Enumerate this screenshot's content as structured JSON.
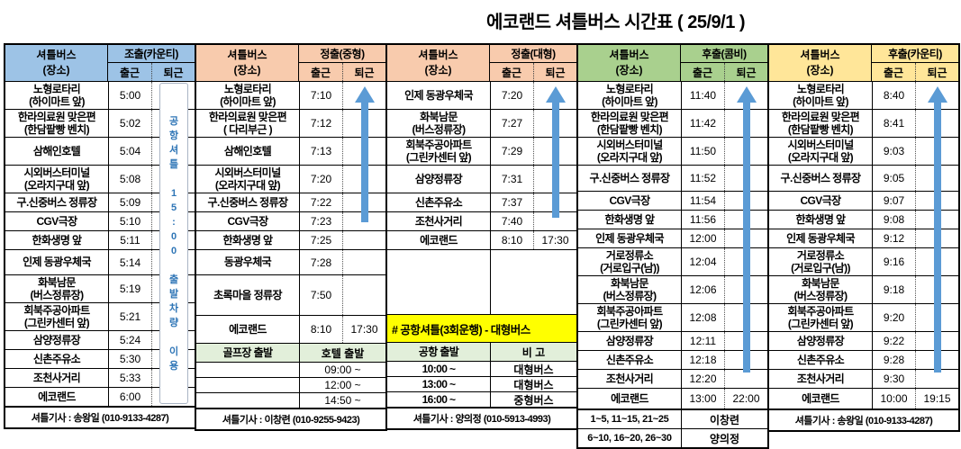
{
  "title": "에코랜드 셔틀버스 시간표 ( 25/9/1 )",
  "colors": {
    "group1_header": "#9DC3E6",
    "group2_header": "#F8CBAD",
    "group3_header": "#F8CBAD",
    "group4_header": "#A9D08E",
    "group5_header": "#FFE699",
    "subheader_bg": "#E2EFDA",
    "banner_bg": "#FFFF00",
    "arrow_blue": "#5B9BD5",
    "note_text_blue": "#2E75B6"
  },
  "groups": [
    {
      "id": "early-county",
      "color": "#9DC3E6",
      "place_header": "셔틀버스\n(장소)",
      "time_header": "조출(카운티)",
      "sub_in": "출근",
      "sub_out": "퇴근",
      "note": "공\n항\n셔\n틀\n \n1\n5\n:\n0\n0\n \n출\n발\n차\n량\n \n이\n용",
      "rows": [
        {
          "place": "노형로타리\n(하이마트 앞)",
          "in": "5:00",
          "out": ""
        },
        {
          "place": "한라의료원 맞은편\n(한담팥빵 벤치)",
          "in": "5:02",
          "out": ""
        },
        {
          "place": "삼해인호텔",
          "in": "5:04",
          "out": ""
        },
        {
          "place": "시외버스터미널\n(오라지구대 앞)",
          "in": "5:08",
          "out": ""
        },
        {
          "place": "구.신중버스 정류장",
          "in": "5:09",
          "out": ""
        },
        {
          "place": "CGV극장",
          "in": "5:10",
          "out": ""
        },
        {
          "place": "한화생명 앞",
          "in": "5:11",
          "out": ""
        },
        {
          "place": "인제 동광우체국",
          "in": "5:14",
          "out": ""
        },
        {
          "place": "화북남문\n(버스정류장)",
          "in": "5:19",
          "out": ""
        },
        {
          "place": "회북주공아파트\n(그린카센터 앞)",
          "in": "5:21",
          "out": ""
        },
        {
          "place": "삼양정류장",
          "in": "5:24",
          "out": ""
        },
        {
          "place": "신촌주유소",
          "in": "5:30",
          "out": ""
        },
        {
          "place": "조천사거리",
          "in": "5:33",
          "out": ""
        },
        {
          "place": "에코랜드",
          "in": "6:00",
          "out": ""
        }
      ],
      "footer": "셔틀기사 : 송왕일 (010-9133-4287)"
    },
    {
      "id": "mid-medium",
      "color": "#F8CBAD",
      "place_header": "셔틀버스\n(장소)",
      "time_header": "정출(중형)",
      "sub_in": "출근",
      "sub_out": "퇴근",
      "return_indicator": "up-arrow",
      "rows": [
        {
          "place": "노형로타리\n(하이마트 앞)",
          "in": "7:10",
          "out": ""
        },
        {
          "place": "한라의료원 맞은편\n( 다리부근 )",
          "in": "7:12",
          "out": ""
        },
        {
          "place": "삼해인호텔",
          "in": "7:13",
          "out": ""
        },
        {
          "place": "시외버스터미널\n(오라지구대 앞)",
          "in": "7:20",
          "out": ""
        },
        {
          "place": "구.신중버스 정류장",
          "in": "7:22",
          "out": ""
        },
        {
          "place": "CGV극장",
          "in": "7:23",
          "out": ""
        },
        {
          "place": "한화생명 앞",
          "in": "7:25",
          "out": ""
        },
        {
          "place": "동광우체국",
          "in": "7:28",
          "out": ""
        },
        {
          "place": "초록마을 정류장",
          "in": "7:50",
          "out": ""
        },
        {
          "place": "에코랜드",
          "in": "8:10",
          "out": "17:30"
        },
        {
          "place": "골프장 출발",
          "span": "호텔 출발",
          "style": "subheader"
        },
        {
          "place": "",
          "span": "09:00 ~"
        },
        {
          "place": "",
          "span": "12:00 ~"
        },
        {
          "place": "",
          "span": "14:50 ~"
        }
      ],
      "footer": "셔틀기사 : 이창련 (010-9255-9423)"
    },
    {
      "id": "mid-large",
      "color": "#F8CBAD",
      "place_header": "셔틀버스\n(장소)",
      "time_header": "정출(대형)",
      "sub_in": "출근",
      "sub_out": "퇴근",
      "return_indicator": "up-arrow",
      "rows": [
        {
          "place": "인제 동광우체국",
          "in": "7:20",
          "out": ""
        },
        {
          "place": "화북남문\n(버스정류장)",
          "in": "7:27",
          "out": ""
        },
        {
          "place": "회북주공아파트\n(그린카센터 앞)",
          "in": "7:29",
          "out": ""
        },
        {
          "place": "삼양정류장",
          "in": "7:31",
          "out": ""
        },
        {
          "place": "신촌주유소",
          "in": "7:37",
          "out": ""
        },
        {
          "place": "조천사거리",
          "in": "7:40",
          "out": ""
        },
        {
          "place": "에코랜드",
          "in": "8:10",
          "out": "17:30"
        },
        {
          "place": "",
          "span": "",
          "style": "spacer"
        },
        {
          "merged": "# 공항셔틀(3회운행) - 대형버스",
          "style": "banner"
        },
        {
          "place": "공항 출발",
          "span": "비   고",
          "style": "subheader"
        },
        {
          "place": "10:00 ~",
          "span": "대형버스",
          "style": "bus"
        },
        {
          "place": "13:00 ~",
          "span": "대형버스",
          "style": "bus"
        },
        {
          "place": "16:00 ~",
          "span": "중형버스",
          "style": "bus"
        }
      ],
      "footer": "셔틀기사 : 양의정 (010-5913-4993)"
    },
    {
      "id": "late-combi",
      "color": "#A9D08E",
      "place_header": "셔틀버스\n(장소)",
      "time_header": "후출(콤비)",
      "sub_in": "출근",
      "sub_out": "퇴근",
      "return_indicator": "up-arrow",
      "rows": [
        {
          "place": "노형로타리\n(하이마트 앞)",
          "in": "11:40",
          "out": ""
        },
        {
          "place": "한라의료원 맞은편\n(한담팥빵 벤치)",
          "in": "11:42",
          "out": ""
        },
        {
          "place": "시외버스터미널\n(오라지구대 앞)",
          "in": "11:50",
          "out": ""
        },
        {
          "place": "구.신중버스 정류장",
          "in": "11:52",
          "out": ""
        },
        {
          "place": "CGV극장",
          "in": "11:54",
          "out": ""
        },
        {
          "place": "한화생명 앞",
          "in": "11:56",
          "out": ""
        },
        {
          "place": "인제 동광우체국",
          "in": "12:00",
          "out": ""
        },
        {
          "place": "거로정류소\n(거로입구(남))",
          "in": "12:04",
          "out": ""
        },
        {
          "place": "화북남문\n(버스정류장)",
          "in": "12:06",
          "out": ""
        },
        {
          "place": "회북주공아파트\n(그린카센터 앞)",
          "in": "12:08",
          "out": ""
        },
        {
          "place": "삼양정류장",
          "in": "12:11",
          "out": ""
        },
        {
          "place": "신촌주유소",
          "in": "12:18",
          "out": ""
        },
        {
          "place": "조천사거리",
          "in": "12:20",
          "out": ""
        },
        {
          "place": "에코랜드",
          "in": "13:00",
          "out": "22:00"
        },
        {
          "place": "1~5, 11~15, 21~25",
          "span": "이창련",
          "style": "driver"
        },
        {
          "place": "6~10, 16~20, 26~30",
          "span": "양의정",
          "style": "driver"
        }
      ]
    },
    {
      "id": "late-county",
      "color": "#FFE699",
      "place_header": "셔틀버스\n(장소)",
      "time_header": "후출(카운티)",
      "sub_in": "출근",
      "sub_out": "퇴근",
      "return_indicator": "up-arrow",
      "rows": [
        {
          "place": "노형로타리\n(하이마트 앞)",
          "in": "8:40",
          "out": ""
        },
        {
          "place": "한라의료원 맞은편\n(한담팥빵 벤치)",
          "in": "8:41",
          "out": ""
        },
        {
          "place": "시외버스터미널\n(오라지구대 앞)",
          "in": "9:03",
          "out": ""
        },
        {
          "place": "구.신중버스 정류장",
          "in": "9:05",
          "out": ""
        },
        {
          "place": "CGV극장",
          "in": "9:07",
          "out": ""
        },
        {
          "place": "한화생명 앞",
          "in": "9:08",
          "out": ""
        },
        {
          "place": "인제 동광우체국",
          "in": "9:12",
          "out": ""
        },
        {
          "place": "거로정류소\n(거로입구(남))",
          "in": "9:16",
          "out": ""
        },
        {
          "place": "화북남문\n(버스정류장)",
          "in": "9:18",
          "out": ""
        },
        {
          "place": "회북주공아파트\n(그린카센터 앞)",
          "in": "9:20",
          "out": ""
        },
        {
          "place": "삼양정류장",
          "in": "9:22",
          "out": ""
        },
        {
          "place": "신촌주유소",
          "in": "9:28",
          "out": ""
        },
        {
          "place": "조천사거리",
          "in": "9:30",
          "out": ""
        },
        {
          "place": "에코랜드",
          "in": "10:00",
          "out": "19:15"
        }
      ],
      "footer": "셔틀기사 : 송왕일 (010-9133-4287)"
    }
  ]
}
